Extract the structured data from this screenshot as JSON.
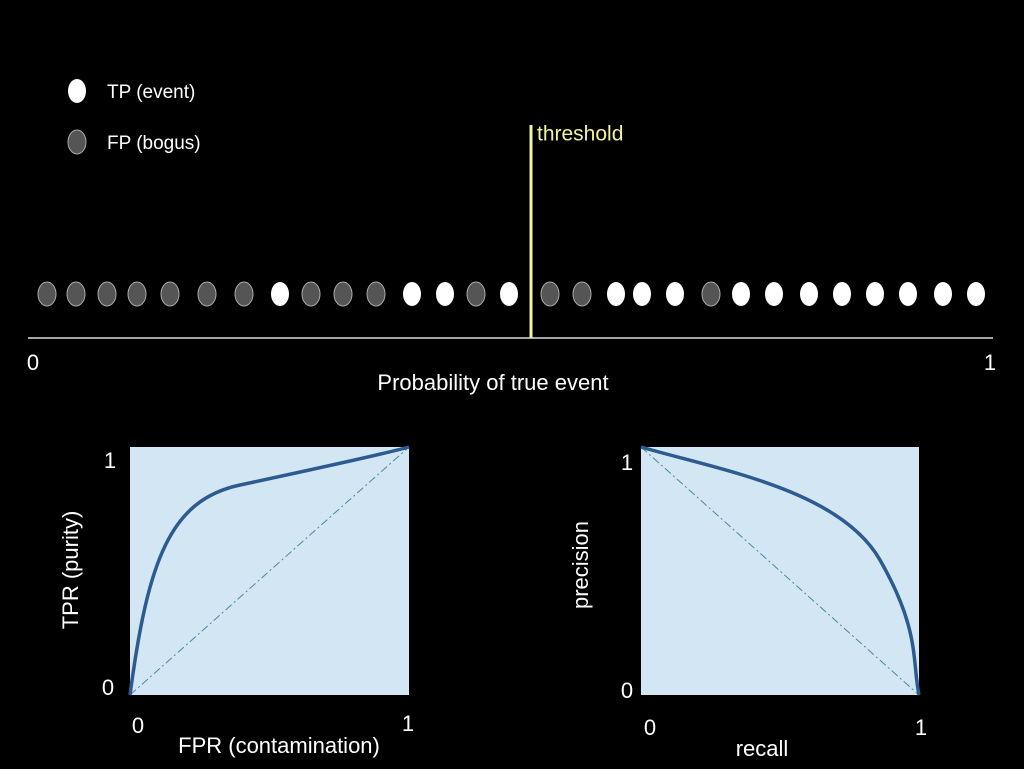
{
  "legend": [
    {
      "label": "TP (event)"
    },
    {
      "label": "FP (bogus)"
    }
  ],
  "threshold": {
    "label": "threshold"
  },
  "probability_axis": {
    "start": "0",
    "end": "1",
    "label": "Probability of true event"
  },
  "roc_panel": {
    "y_top": "1",
    "y_bottom": "0",
    "x_left": "0",
    "x_right": "1",
    "y_label": "TPR (purity)",
    "x_label": "FPR (contamination)"
  },
  "pr_panel": {
    "y_top": "1",
    "y_bottom": "0",
    "x_left": "0",
    "x_right": "1",
    "y_label": "precision",
    "x_label": "recall"
  }
}
